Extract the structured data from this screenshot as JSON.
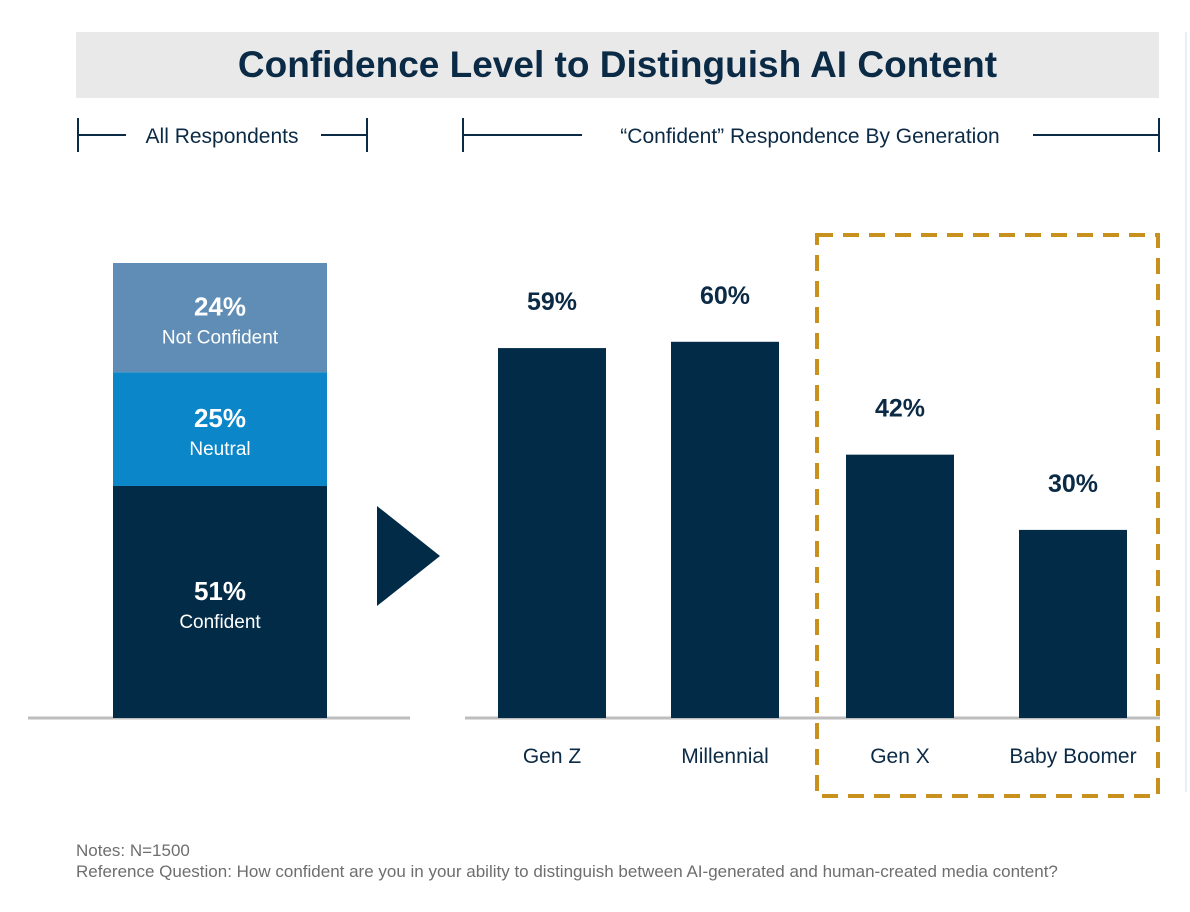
{
  "title": "Confidence Level to Distinguish AI Content",
  "left_section_label": "All Respondents",
  "right_section_label": "“Confident” Respondence By Generation",
  "notes": {
    "line1": "Notes: N=1500",
    "line2": "Reference Question: How confident are you in your ability to distinguish between AI-generated and human-created media content?"
  },
  "colors": {
    "dark_navy": "#022b48",
    "mid_blue": "#0a86c9",
    "steel_blue": "#5f8db6",
    "highlight_orange": "#c8901c",
    "baseline_gray": "#bdbdbd"
  },
  "chart_data": [
    {
      "type": "bar",
      "stacked": true,
      "categories": [
        "All Respondents"
      ],
      "series": [
        {
          "name": "Confident",
          "values": [
            51
          ],
          "value_label": "51%",
          "color": "#022b48"
        },
        {
          "name": "Neutral",
          "values": [
            25
          ],
          "value_label": "25%",
          "color": "#0a86c9"
        },
        {
          "name": "Not Confident",
          "values": [
            24
          ],
          "value_label": "24%",
          "color": "#5f8db6"
        }
      ],
      "ylim": [
        0,
        100
      ]
    },
    {
      "type": "bar",
      "categories": [
        "Gen Z",
        "Millennial",
        "Gen X",
        "Baby Boomer"
      ],
      "values": [
        59,
        60,
        42,
        30
      ],
      "value_labels": [
        "59%",
        "60%",
        "42%",
        "30%"
      ],
      "highlighted_categories": [
        "Gen X",
        "Baby Boomer"
      ],
      "ylim": [
        0,
        100
      ]
    }
  ]
}
